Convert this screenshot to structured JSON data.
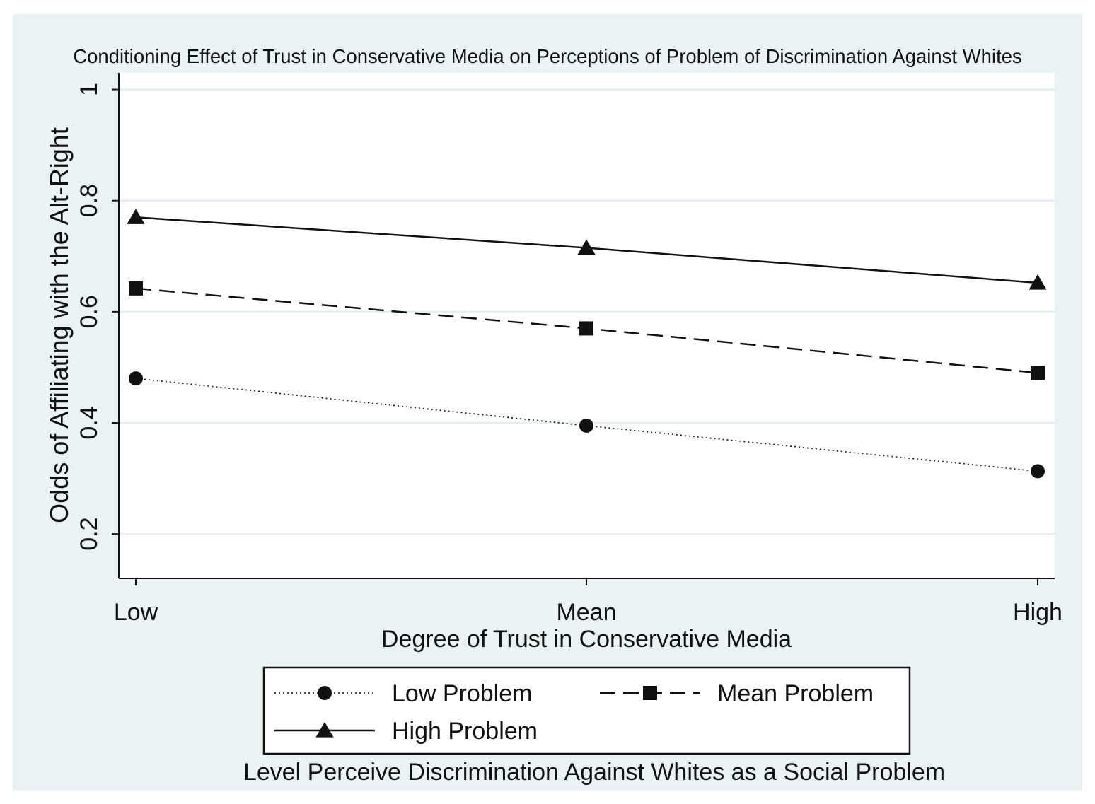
{
  "chart_data": {
    "type": "line",
    "title": "Conditioning Effect of Trust in Conservative Media on Perceptions of Problem of Discrimination Against Whites",
    "xlabel": "Degree of Trust in Conservative Media",
    "ylabel": "Odds of Affiliating with the Alt-Right",
    "categories": [
      "Low",
      "Mean",
      "High"
    ],
    "ylim": [
      0.12,
      1.03
    ],
    "yticks": [
      0.2,
      0.4,
      0.6,
      0.8,
      1
    ],
    "ytick_labels": [
      "0.2",
      "0.4",
      "0.6",
      "0.8",
      "1"
    ],
    "grid": true,
    "legend_title": "Level Perceive Discrimination Against Whites as a Social Problem",
    "legend_position": "bottom",
    "series": [
      {
        "name": "Low Problem",
        "values": [
          0.48,
          0.395,
          0.313
        ],
        "marker": "circle",
        "line_style": "dotted"
      },
      {
        "name": "Mean Problem",
        "values": [
          0.642,
          0.57,
          0.49
        ],
        "marker": "square",
        "line_style": "dashed"
      },
      {
        "name": "High Problem",
        "values": [
          0.77,
          0.715,
          0.652
        ],
        "marker": "triangle",
        "line_style": "solid"
      }
    ]
  },
  "colors": {
    "background": "#eaf2f3",
    "plot_area": "#ffffff",
    "grid": "#e6eef0",
    "line": "#111111"
  }
}
